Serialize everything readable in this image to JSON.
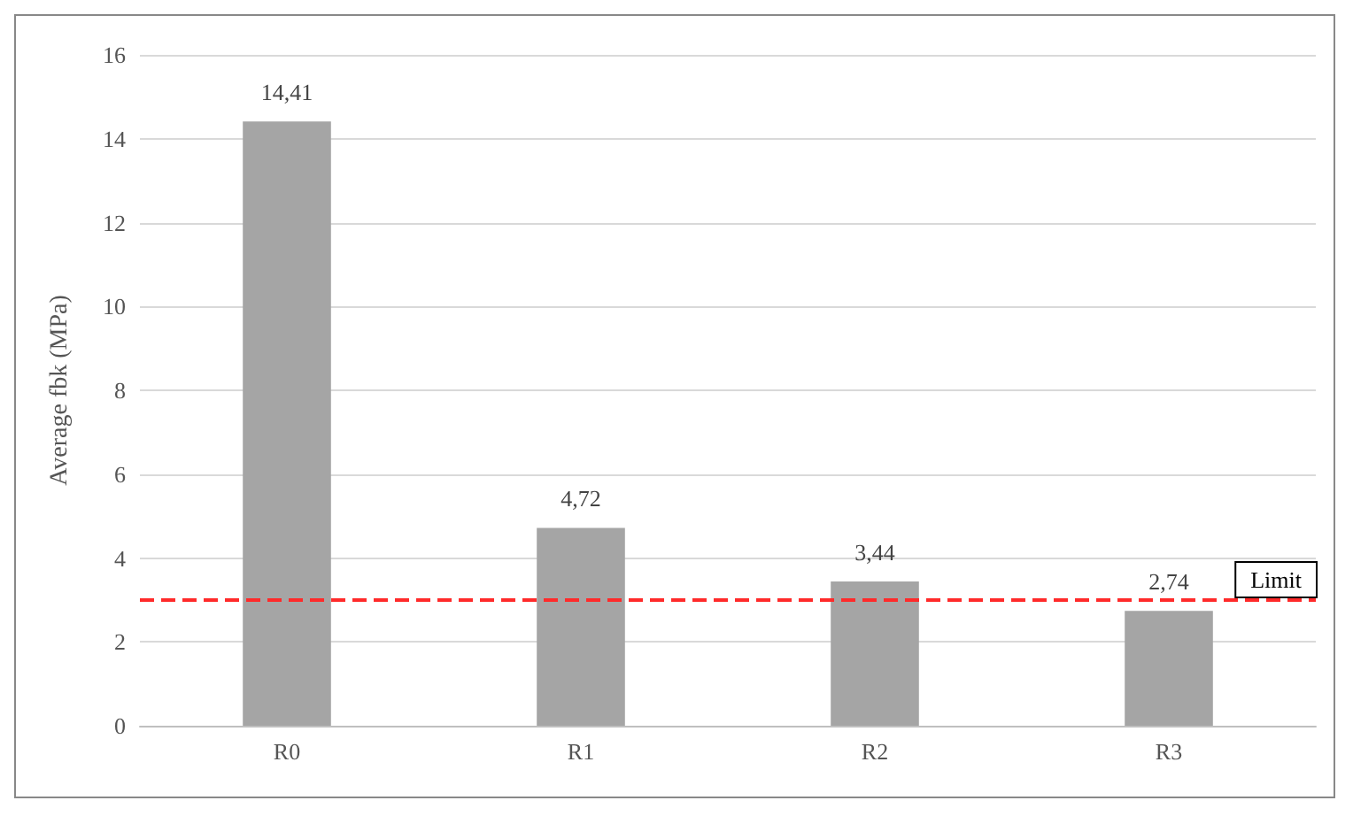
{
  "chart_data": {
    "type": "bar",
    "ylabel": "Average fbk (MPa)",
    "categories": [
      "R0",
      "R1",
      "R2",
      "R3"
    ],
    "values": [
      14.41,
      4.72,
      3.44,
      2.74
    ],
    "value_labels": [
      "14,41",
      "4,72",
      "3,44",
      "2,74"
    ],
    "color": "#a5a5a5",
    "ylim": [
      0,
      16
    ],
    "yticks": [
      0,
      2,
      4,
      6,
      8,
      10,
      12,
      14,
      16
    ],
    "grid": "y",
    "ref_lines": [
      {
        "axis": "y",
        "value": 3,
        "label": "Limit",
        "color": "#ff2a2a",
        "line_style": "dashed"
      }
    ]
  }
}
